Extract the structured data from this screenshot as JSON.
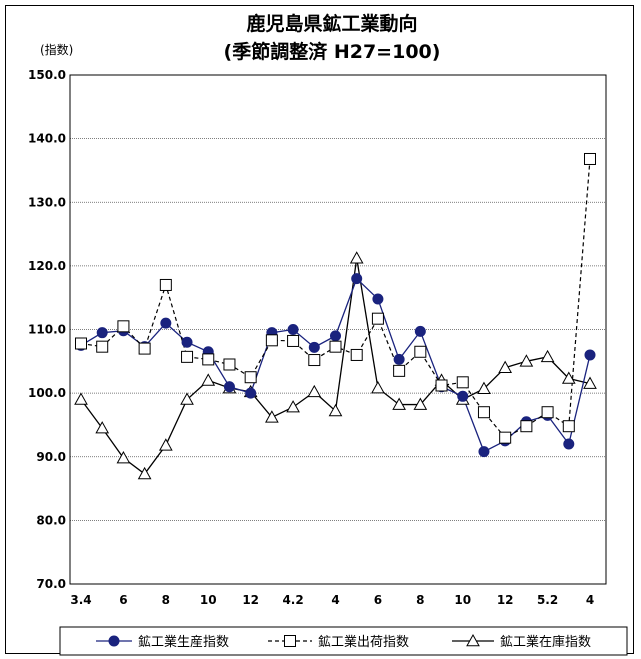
{
  "chart_data": {
    "type": "line",
    "title": "鹿児島県鉱工業動向",
    "subtitle": "(季節調整済 H27=100)",
    "ylabel": "(指数)",
    "ylim": [
      70,
      150
    ],
    "yticks": [
      "70.0",
      "80.0",
      "90.0",
      "100.0",
      "110.0",
      "120.0",
      "130.0",
      "140.0",
      "150.0"
    ],
    "yticks_values": [
      70,
      80,
      90,
      100,
      110,
      120,
      130,
      140,
      150
    ],
    "x_tick_labels": [
      "3.4",
      "6",
      "8",
      "10",
      "12",
      "4.2",
      "4",
      "6",
      "8",
      "10",
      "12",
      "5.2",
      "4"
    ],
    "x_tick_positions": [
      0,
      2,
      4,
      6,
      8,
      10,
      12,
      14,
      16,
      18,
      20,
      22,
      24
    ],
    "grid": true,
    "legend_position": "bottom",
    "series": [
      {
        "name": "鉱工業生産指数",
        "color": "#1a237e",
        "values": [
          107.5,
          109.5,
          109.8,
          107.3,
          111.0,
          108.0,
          106.5,
          101.0,
          100.0,
          109.5,
          110.0,
          107.2,
          109.0,
          118.0,
          114.8,
          105.3,
          109.7,
          101.0,
          99.5,
          90.8,
          92.5,
          95.5,
          96.5,
          92.0,
          106.0
        ]
      },
      {
        "name": "鉱工業出荷指数",
        "color": "#000000",
        "values": [
          107.8,
          107.3,
          110.5,
          107.0,
          117.0,
          105.7,
          105.3,
          104.5,
          102.5,
          108.3,
          108.2,
          105.2,
          107.3,
          106.0,
          111.7,
          103.5,
          106.5,
          101.2,
          101.7,
          97.0,
          93.0,
          94.8,
          97.0,
          94.8,
          136.8
        ]
      },
      {
        "name": "鉱工業在庫指数",
        "color": "#000000",
        "values": [
          99.0,
          94.5,
          89.8,
          87.3,
          91.8,
          99.0,
          102.0,
          100.8,
          100.2,
          96.2,
          97.8,
          100.2,
          97.2,
          121.2,
          100.8,
          98.2,
          98.2,
          102.0,
          99.0,
          100.7,
          104.0,
          105.0,
          105.7,
          102.3,
          101.5
        ]
      }
    ]
  }
}
